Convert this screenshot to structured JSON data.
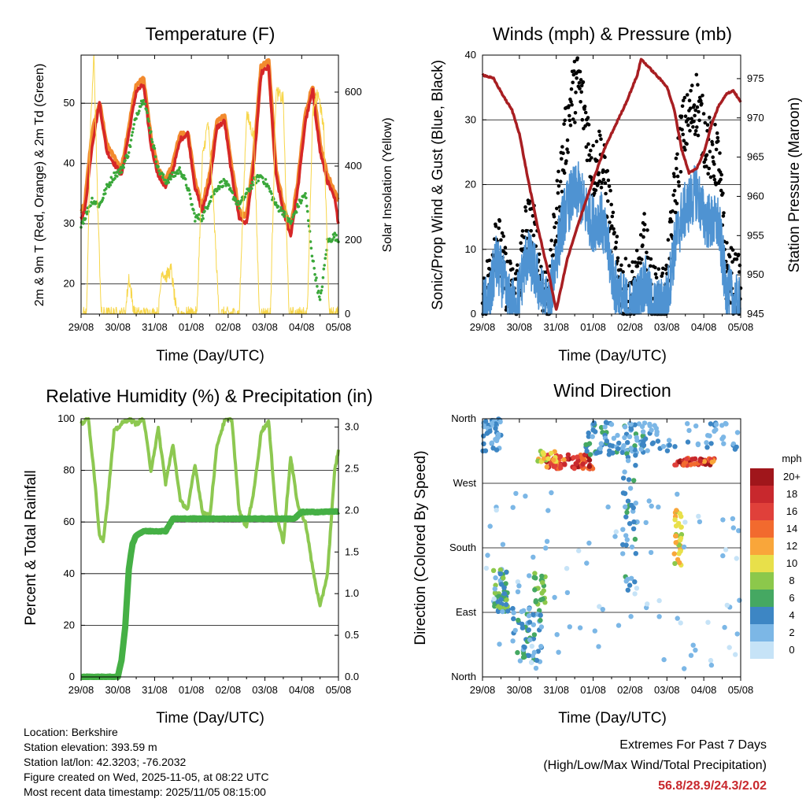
{
  "colors": {
    "temp_red": "#d62728",
    "temp_orange": "#f28a2e",
    "td_green": "#3aa83a",
    "solar": "#f7d64a",
    "wind_black": "#000000",
    "sonic_blue": "#4f93d2",
    "pressure": "#a81e22",
    "rh": "#8dc851",
    "precip": "#45b045",
    "extremes": "#c8282d"
  },
  "chart_data": [
    {
      "id": "temperature",
      "type": "line",
      "title": "Temperature (F)",
      "xlabel": "Time (Day/UTC)",
      "ylabel_left": "2m & 9m T (Red, Orange) & 2m Td (Green)",
      "ylabel_right": "Solar Insolation (Yellow)",
      "x_ticks": [
        "29/08",
        "30/08",
        "31/08",
        "01/08",
        "02/08",
        "03/08",
        "04/08",
        "05/08"
      ],
      "xlim": [
        0,
        7
      ],
      "ylim_left": [
        15,
        58
      ],
      "ylim_right": [
        0,
        700
      ],
      "y_ticks_left": [
        20,
        30,
        40,
        50
      ],
      "y_ticks_right": [
        0,
        200,
        400,
        600
      ],
      "series": [
        {
          "name": "9m T",
          "axis": "left",
          "color": "#f28a2e",
          "x": [
            0,
            0.1,
            0.3,
            0.5,
            0.7,
            0.9,
            1.1,
            1.3,
            1.5,
            1.7,
            1.9,
            2.1,
            2.3,
            2.5,
            2.7,
            2.9,
            3.1,
            3.3,
            3.5,
            3.7,
            3.9,
            4.1,
            4.3,
            4.5,
            4.7,
            4.9,
            5.1,
            5.3,
            5.5,
            5.7,
            5.9,
            6.1,
            6.3,
            6.5,
            6.7,
            6.9,
            7
          ],
          "y": [
            32,
            33,
            45,
            50,
            43,
            41,
            39,
            46,
            53,
            54,
            44,
            39,
            37,
            40,
            45,
            45,
            37,
            33,
            38,
            47,
            48,
            39,
            32,
            31,
            41,
            56,
            57,
            39,
            33,
            29,
            37,
            48,
            53,
            43,
            38,
            35,
            34
          ]
        },
        {
          "name": "2m T",
          "axis": "left",
          "color": "#d62728",
          "x": [
            0,
            0.1,
            0.3,
            0.5,
            0.7,
            0.9,
            1.1,
            1.3,
            1.5,
            1.7,
            1.9,
            2.1,
            2.3,
            2.5,
            2.7,
            2.9,
            3.1,
            3.3,
            3.5,
            3.7,
            3.9,
            4.1,
            4.3,
            4.5,
            4.7,
            4.9,
            5.1,
            5.3,
            5.5,
            5.7,
            5.9,
            6.1,
            6.3,
            6.5,
            6.7,
            6.9,
            7
          ],
          "y": [
            31,
            32,
            43,
            50,
            42,
            40,
            38,
            45,
            52,
            53,
            43,
            38,
            36,
            39,
            44,
            45,
            36,
            32,
            37,
            46,
            47,
            38,
            31,
            30,
            40,
            55,
            56,
            38,
            32,
            28,
            36,
            47,
            52,
            42,
            37,
            34,
            30
          ]
        },
        {
          "name": "2m Td",
          "axis": "left",
          "color": "#3aa83a",
          "x": [
            0,
            0.1,
            0.3,
            0.5,
            0.7,
            0.9,
            1.1,
            1.3,
            1.5,
            1.7,
            1.9,
            2.1,
            2.3,
            2.5,
            2.7,
            2.9,
            3.1,
            3.3,
            3.5,
            3.7,
            3.9,
            4.1,
            4.3,
            4.5,
            4.7,
            4.9,
            5.1,
            5.3,
            5.5,
            5.7,
            5.9,
            6.1,
            6.3,
            6.5,
            6.7,
            6.9,
            7
          ],
          "y": [
            30,
            31,
            34,
            33,
            36,
            38,
            39,
            42,
            48,
            51,
            45,
            39,
            37,
            38,
            39,
            36,
            31,
            31,
            34,
            36,
            37,
            35,
            33,
            35,
            37,
            38,
            36,
            33,
            32,
            30,
            33,
            35,
            24,
            17,
            27,
            28,
            27
          ]
        },
        {
          "name": "Solar Insolation",
          "axis": "right",
          "color": "#f7d64a",
          "x": [
            0,
            0.15,
            0.25,
            0.35,
            0.45,
            0.55,
            0.7,
            1.2,
            1.3,
            1.45,
            2.1,
            2.2,
            2.3,
            2.45,
            2.6,
            3.15,
            3.3,
            3.45,
            3.6,
            3.75,
            4.2,
            4.3,
            4.5,
            4.7,
            4.85,
            5.15,
            5.3,
            5.5,
            5.65,
            5.8,
            6.15,
            6.3,
            6.45,
            6.6,
            6.75,
            7
          ],
          "y": [
            0,
            0,
            480,
            700,
            300,
            0,
            0,
            0,
            100,
            0,
            0,
            120,
            100,
            120,
            0,
            0,
            420,
            520,
            300,
            0,
            0,
            0,
            540,
            480,
            0,
            0,
            600,
            580,
            0,
            0,
            0,
            540,
            600,
            500,
            0,
            0
          ]
        }
      ]
    },
    {
      "id": "winds",
      "type": "line",
      "title": "Winds (mph) & Pressure (mb)",
      "xlabel": "Time (Day/UTC)",
      "ylabel_left": "Sonic/Prop Wind & Gust (Blue, Black)",
      "ylabel_right": "Station Pressure (Maroon)",
      "x_ticks": [
        "29/08",
        "30/08",
        "31/08",
        "01/08",
        "02/08",
        "03/08",
        "04/08",
        "05/08"
      ],
      "xlim": [
        0,
        7
      ],
      "ylim_left": [
        0,
        40
      ],
      "ylim_right": [
        945,
        978
      ],
      "y_ticks_left": [
        0,
        10,
        20,
        30,
        40
      ],
      "y_ticks_right": [
        945,
        950,
        955,
        960,
        965,
        970,
        975
      ],
      "series": [
        {
          "name": "Gust",
          "axis": "left",
          "color": "#000000",
          "x": [
            0,
            0.2,
            0.35,
            0.5,
            0.7,
            0.9,
            1.05,
            1.2,
            1.4,
            1.6,
            1.8,
            2.0,
            2.2,
            2.4,
            2.6,
            2.8,
            3.0,
            3.2,
            3.4,
            3.6,
            3.8,
            4.0,
            4.2,
            4.4,
            4.6,
            4.8,
            5.0,
            5.2,
            5.4,
            5.6,
            5.8,
            6.0,
            6.2,
            6.4,
            6.6,
            6.8,
            7.0
          ],
          "y": [
            3,
            5,
            13,
            9,
            4,
            3,
            8,
            14,
            12,
            5,
            2,
            15,
            25,
            33,
            36,
            30,
            22,
            25,
            18,
            8,
            4,
            3,
            5,
            11,
            3,
            2,
            4,
            18,
            28,
            30,
            33,
            28,
            25,
            24,
            7,
            5,
            4
          ]
        },
        {
          "name": "Sonic Wind",
          "axis": "left",
          "color": "#4f93d2",
          "x": [
            0,
            0.2,
            0.35,
            0.5,
            0.7,
            0.9,
            1.05,
            1.2,
            1.4,
            1.6,
            1.8,
            2.0,
            2.2,
            2.4,
            2.6,
            2.8,
            3.0,
            3.2,
            3.4,
            3.6,
            3.8,
            4.0,
            4.2,
            4.4,
            4.6,
            4.8,
            5.0,
            5.2,
            5.4,
            5.6,
            5.8,
            6.0,
            6.2,
            6.4,
            6.6,
            6.8,
            7.0
          ],
          "y": [
            1,
            2,
            8,
            6,
            2,
            1,
            5,
            9,
            7,
            3,
            1,
            9,
            15,
            18,
            19,
            16,
            14,
            15,
            10,
            4,
            2,
            1,
            2,
            5,
            1,
            1,
            2,
            10,
            15,
            17,
            19,
            15,
            14,
            14,
            4,
            2,
            1
          ]
        },
        {
          "name": "Station Pressure",
          "axis": "right",
          "color": "#a81e22",
          "x": [
            0,
            0.3,
            0.6,
            0.8,
            1.0,
            1.2,
            1.5,
            1.8,
            2.0,
            2.3,
            2.7,
            3.0,
            3.3,
            3.6,
            3.9,
            4.2,
            4.3,
            4.6,
            5.0,
            5.2,
            5.4,
            5.6,
            5.8,
            6.0,
            6.2,
            6.4,
            6.6,
            6.8,
            7.0
          ],
          "y": [
            975.5,
            975.0,
            972.5,
            971.0,
            968.0,
            963.0,
            956.0,
            950.0,
            945.5,
            952.0,
            958.0,
            962.0,
            966.0,
            969.0,
            972.0,
            975.5,
            977.5,
            976.0,
            974.0,
            971.0,
            966.0,
            963.0,
            963.5,
            965.5,
            969.0,
            971.5,
            973.0,
            973.5,
            972.0
          ]
        }
      ]
    },
    {
      "id": "humidity",
      "type": "line",
      "title": "Relative Humidity (%) & Precipitation (in)",
      "xlabel": "Time (Day/UTC)",
      "ylabel_left": "Percent & Total Rainfall",
      "ylabel_right": "",
      "x_ticks": [
        "29/08",
        "30/08",
        "31/08",
        "01/08",
        "02/08",
        "03/08",
        "04/08",
        "05/08"
      ],
      "xlim": [
        0,
        7
      ],
      "ylim_left": [
        0,
        100
      ],
      "ylim_right": [
        0,
        3.1
      ],
      "y_ticks_left": [
        0,
        20,
        40,
        60,
        80,
        100
      ],
      "y_ticks_right": [
        "0.0",
        "0.5",
        "1.0",
        "1.5",
        "2.0",
        "2.5",
        "3.0"
      ],
      "series": [
        {
          "name": "Relative Humidity",
          "axis": "left",
          "color": "#8dc851",
          "x": [
            0,
            0.2,
            0.35,
            0.5,
            0.6,
            0.7,
            0.9,
            1.1,
            1.3,
            1.5,
            1.7,
            1.9,
            2.1,
            2.3,
            2.5,
            2.7,
            2.9,
            3.1,
            3.3,
            3.5,
            3.7,
            3.9,
            4.1,
            4.3,
            4.5,
            4.7,
            4.9,
            5.1,
            5.3,
            5.5,
            5.7,
            5.9,
            6.1,
            6.3,
            6.5,
            6.7,
            6.9,
            7.0
          ],
          "y": [
            98,
            100,
            80,
            55,
            53,
            65,
            95,
            98,
            100,
            98,
            100,
            80,
            96,
            75,
            90,
            68,
            65,
            82,
            64,
            62,
            90,
            99,
            100,
            64,
            58,
            72,
            95,
            99,
            64,
            52,
            85,
            66,
            60,
            42,
            27,
            40,
            80,
            88
          ]
        },
        {
          "name": "Total Precipitation",
          "axis": "right",
          "color": "#45b045",
          "x": [
            0,
            0.5,
            1.0,
            1.1,
            1.2,
            1.3,
            1.4,
            1.5,
            1.7,
            2.0,
            2.3,
            2.5,
            3.0,
            3.5,
            4.0,
            4.5,
            5.0,
            5.5,
            5.8,
            6.0,
            6.5,
            7.0
          ],
          "y": [
            0.0,
            0.0,
            0.0,
            0.2,
            0.6,
            1.3,
            1.6,
            1.7,
            1.75,
            1.75,
            1.75,
            1.9,
            1.9,
            1.9,
            1.9,
            1.9,
            1.9,
            1.9,
            1.9,
            1.98,
            1.98,
            1.99
          ]
        }
      ]
    },
    {
      "id": "wind_direction",
      "type": "scatter",
      "title": "Wind Direction",
      "xlabel": "Time (Day/UTC)",
      "ylabel_left": "Direction (Colored By Speed)",
      "x_ticks": [
        "29/08",
        "30/08",
        "31/08",
        "01/08",
        "02/08",
        "03/08",
        "04/08",
        "05/08"
      ],
      "y_labels": [
        "North",
        "East",
        "South",
        "West",
        "North"
      ],
      "xlim": [
        0,
        7
      ],
      "ylim": [
        0,
        360
      ],
      "legend": {
        "unit": "mph",
        "labels": [
          "20+",
          "18",
          "16",
          "14",
          "12",
          "10",
          "8",
          "6",
          "4",
          "2",
          "0"
        ],
        "colors": [
          "#a0161b",
          "#c8282d",
          "#e0403a",
          "#f26a2e",
          "#f9a63a",
          "#e8e04a",
          "#8cc84b",
          "#45a862",
          "#3d86c4",
          "#7cb7e6",
          "#c6e3f7"
        ]
      },
      "clusters": [
        {
          "x": [
            0.0,
            0.5
          ],
          "dir": [
            315,
            360
          ],
          "spd": [
            2,
            5
          ],
          "n": 40
        },
        {
          "x": [
            0.3,
            0.7
          ],
          "dir": [
            90,
            150
          ],
          "spd": [
            2,
            9
          ],
          "n": 55
        },
        {
          "x": [
            0.8,
            1.6
          ],
          "dir": [
            20,
            100
          ],
          "spd": [
            1,
            7
          ],
          "n": 55
        },
        {
          "x": [
            1.4,
            1.7
          ],
          "dir": [
            100,
            145
          ],
          "spd": [
            5,
            9
          ],
          "n": 22
        },
        {
          "x": [
            1.7,
            3.0
          ],
          "dir": [
            290,
            310
          ],
          "spd": [
            12,
            20
          ],
          "n": 70
        },
        {
          "x": [
            1.5,
            2.0
          ],
          "dir": [
            300,
            315
          ],
          "spd": [
            8,
            13
          ],
          "n": 18
        },
        {
          "x": [
            2.8,
            4.4
          ],
          "dir": [
            310,
            355
          ],
          "spd": [
            1,
            6
          ],
          "n": 80
        },
        {
          "x": [
            3.8,
            4.2
          ],
          "dir": [
            120,
            320
          ],
          "spd": [
            2,
            6
          ],
          "n": 40
        },
        {
          "x": [
            5.2,
            5.4
          ],
          "dir": [
            150,
            235
          ],
          "spd": [
            8,
            12
          ],
          "n": 35
        },
        {
          "x": [
            5.2,
            6.3
          ],
          "dir": [
            295,
            305
          ],
          "spd": [
            12,
            20
          ],
          "n": 50
        },
        {
          "x": [
            4.0,
            7.0
          ],
          "dir": [
            315,
            355
          ],
          "spd": [
            1,
            5
          ],
          "n": 60
        },
        {
          "x": [
            0.0,
            7.0
          ],
          "dir": [
            5,
            260
          ],
          "spd": [
            0,
            3
          ],
          "n": 90
        }
      ]
    }
  ],
  "footer": {
    "location": "Location: Berkshire",
    "elevation": "Station elevation: 393.59 m",
    "latlon": "Station lat/lon: 42.3203; -76.2032",
    "created": "Figure created on Wed, 2025-11-05, at 08:22 UTC",
    "recent": "Most recent data timestamp: 2025/11/05 08:15:00"
  },
  "extremes": {
    "title": "Extremes For Past 7 Days",
    "subtitle": "(High/Low/Max Wind/Total Precipitation)",
    "values": "56.8/28.9/24.3/2.02"
  }
}
